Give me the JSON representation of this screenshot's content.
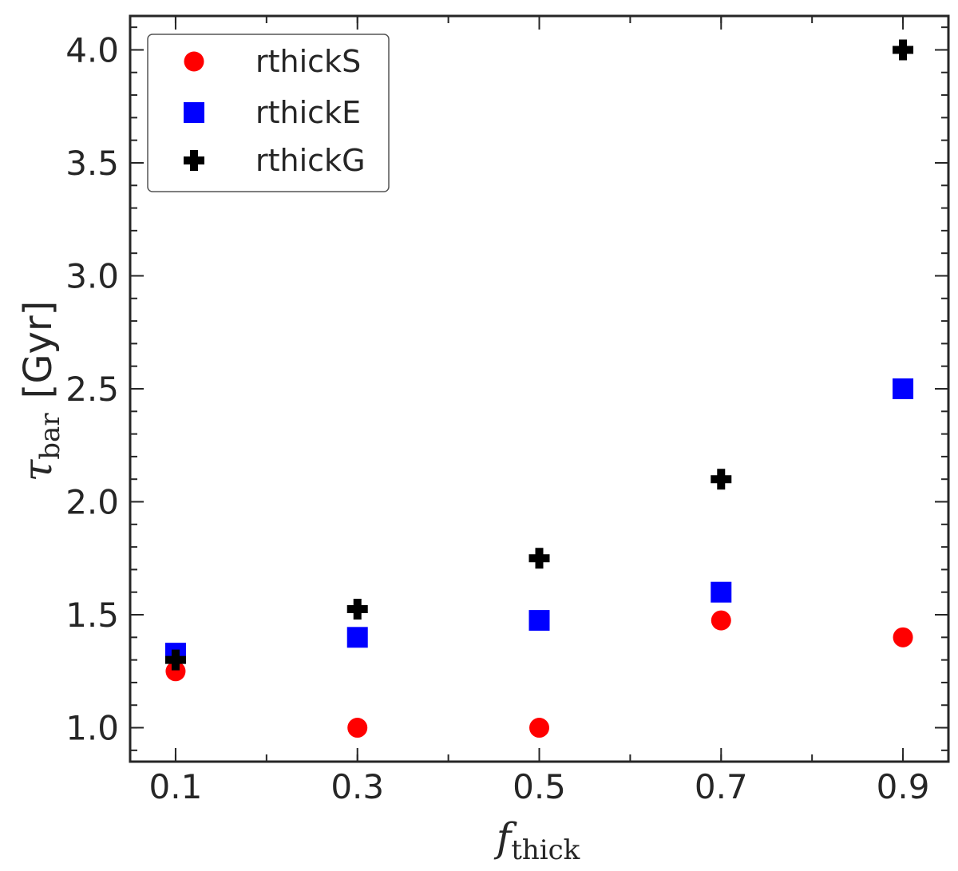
{
  "chart_data": {
    "type": "scatter",
    "title": "",
    "xlabel": {
      "main": "f",
      "sub": "thick"
    },
    "ylabel": {
      "main": "τ",
      "sub": "bar",
      "suffix": "[Gyr]"
    },
    "xlim": [
      0.05,
      0.95
    ],
    "ylim": [
      0.85,
      4.15
    ],
    "x_ticks": [
      "0.1",
      "0.3",
      "0.5",
      "0.7",
      "0.9"
    ],
    "y_ticks": [
      "1.0",
      "1.5",
      "2.0",
      "2.5",
      "3.0",
      "3.5",
      "4.0"
    ],
    "x_minor_step": 0.1,
    "y_minor_step": 0.1,
    "grid": false,
    "legend_position": "top-left",
    "series": [
      {
        "name": "rthickS",
        "marker": "circle",
        "color": "#ff0000",
        "x": [
          0.1,
          0.3,
          0.5,
          0.7,
          0.9
        ],
        "y": [
          1.25,
          1.0,
          1.0,
          1.475,
          1.4
        ]
      },
      {
        "name": "rthickE",
        "marker": "square",
        "color": "#0000ff",
        "x": [
          0.1,
          0.3,
          0.5,
          0.7,
          0.9
        ],
        "y": [
          1.33,
          1.4,
          1.475,
          1.6,
          2.5
        ]
      },
      {
        "name": "rthickG",
        "marker": "plus",
        "color": "#000000",
        "x": [
          0.1,
          0.3,
          0.5,
          0.7,
          0.9
        ],
        "y": [
          1.3,
          1.525,
          1.75,
          2.1,
          4.0
        ]
      }
    ]
  }
}
